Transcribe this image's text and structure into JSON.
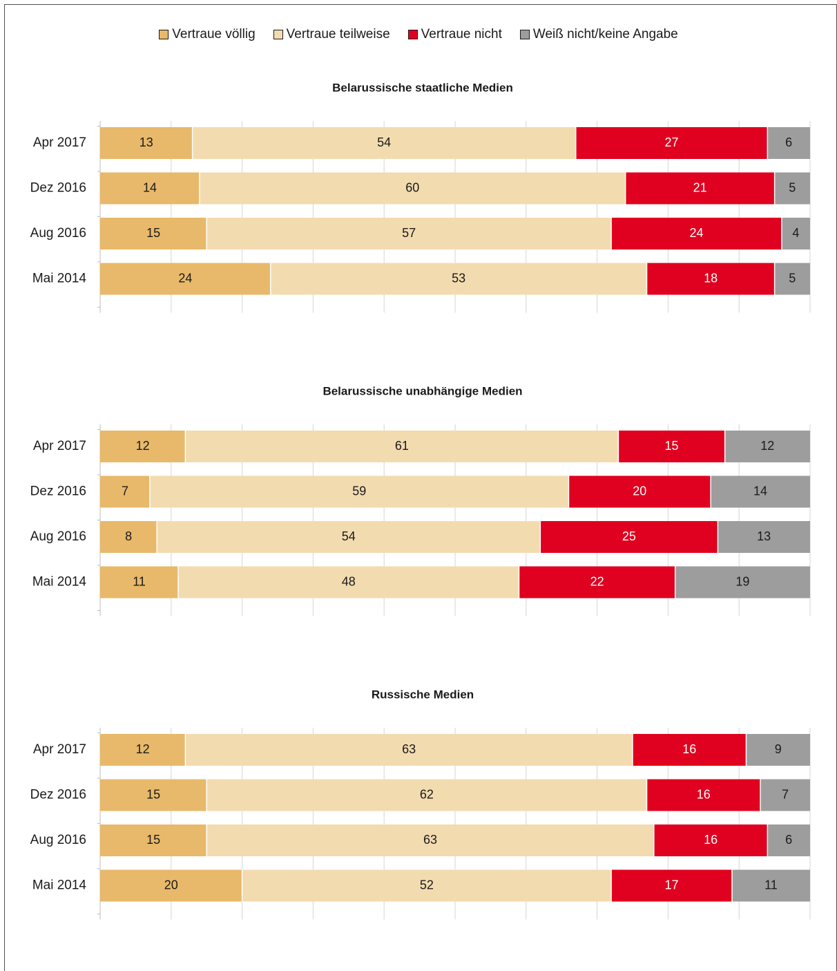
{
  "legend": [
    {
      "label": "Vertraue völlig",
      "color": "#e8b96a"
    },
    {
      "label": "Vertraue teilweise",
      "color": "#f3dbb0"
    },
    {
      "label": "Vertraue nicht",
      "color": "#e0001f"
    },
    {
      "label": "Weiß nicht/keine Angabe",
      "color": "#9d9d9e"
    }
  ],
  "chart_data": [
    {
      "type": "bar",
      "orientation": "horizontal",
      "stacked": true,
      "title": "Belarussische staatliche Medien",
      "categories": [
        "Apr 2017",
        "Dez 2016",
        "Aug 2016",
        "Mai 2014"
      ],
      "series": [
        {
          "name": "Vertraue völlig",
          "values": [
            13,
            14,
            15,
            24
          ]
        },
        {
          "name": "Vertraue teilweise",
          "values": [
            54,
            60,
            57,
            53
          ]
        },
        {
          "name": "Vertraue nicht",
          "values": [
            27,
            21,
            24,
            18
          ]
        },
        {
          "name": "Weiß nicht/keine Angabe",
          "values": [
            6,
            5,
            4,
            5
          ]
        }
      ],
      "xlim": [
        0,
        100
      ]
    },
    {
      "type": "bar",
      "orientation": "horizontal",
      "stacked": true,
      "title": "Belarussische unabhängige Medien",
      "categories": [
        "Apr 2017",
        "Dez 2016",
        "Aug 2016",
        "Mai 2014"
      ],
      "series": [
        {
          "name": "Vertraue völlig",
          "values": [
            12,
            7,
            8,
            11
          ]
        },
        {
          "name": "Vertraue teilweise",
          "values": [
            61,
            59,
            54,
            48
          ]
        },
        {
          "name": "Vertraue nicht",
          "values": [
            15,
            20,
            25,
            22
          ]
        },
        {
          "name": "Weiß nicht/keine Angabe",
          "values": [
            12,
            14,
            13,
            19
          ]
        }
      ],
      "xlim": [
        0,
        100
      ]
    },
    {
      "type": "bar",
      "orientation": "horizontal",
      "stacked": true,
      "title": "Russische Medien",
      "categories": [
        "Apr 2017",
        "Dez 2016",
        "Aug 2016",
        "Mai 2014"
      ],
      "series": [
        {
          "name": "Vertraue völlig",
          "values": [
            12,
            15,
            15,
            20
          ]
        },
        {
          "name": "Vertraue teilweise",
          "values": [
            63,
            62,
            63,
            52
          ]
        },
        {
          "name": "Vertraue nicht",
          "values": [
            16,
            16,
            16,
            17
          ]
        },
        {
          "name": "Weiß nicht/keine Angabe",
          "values": [
            9,
            7,
            6,
            11
          ]
        }
      ],
      "xlim": [
        0,
        100
      ]
    }
  ]
}
